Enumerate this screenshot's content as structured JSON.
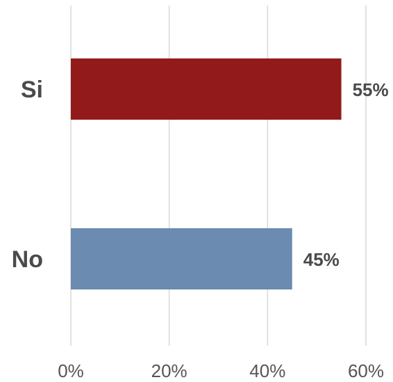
{
  "chart_data": {
    "type": "bar",
    "orientation": "horizontal",
    "categories": [
      "Si",
      "No"
    ],
    "values": [
      55,
      45
    ],
    "data_labels": [
      "55%",
      "45%"
    ],
    "colors": [
      "#921a1a",
      "#6b8bb0"
    ],
    "xlim": [
      0,
      60
    ],
    "x_ticks": [
      0,
      20,
      40,
      60
    ],
    "x_tick_labels": [
      "0%",
      "20%",
      "40%",
      "60%"
    ],
    "grid": true,
    "title": "",
    "xlabel": "",
    "ylabel": ""
  }
}
